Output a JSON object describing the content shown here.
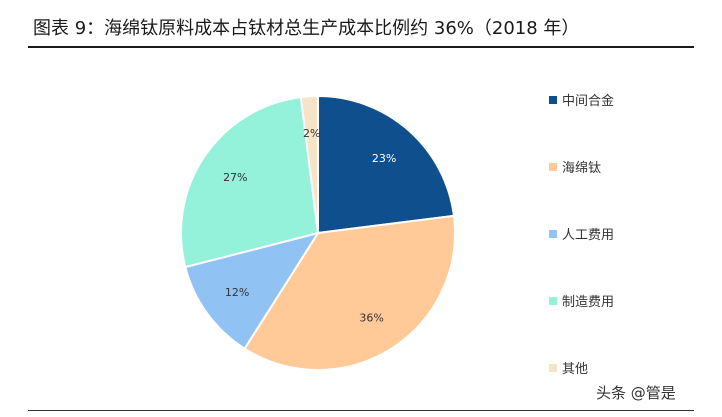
{
  "title": "图表 9：海绵钛原料成本占钛材总生产成本比例约 36%（2018 年）",
  "watermark": {
    "handle": "头条 @管是"
  },
  "chart_data": {
    "type": "pie",
    "title": "图表 9：海绵钛原料成本占钛材总生产成本比例约 36%（2018 年）",
    "start_angle_deg": 0,
    "direction": "clockwise",
    "legend_position": "right",
    "slices": [
      {
        "name": "中间合金",
        "value": 23,
        "label": "23%",
        "color": "#0F4F8E",
        "label_color": "#ffffff"
      },
      {
        "name": "海绵钛",
        "value": 36,
        "label": "36%",
        "color": "#FFC998",
        "label_color": "#333333"
      },
      {
        "name": "人工费用",
        "value": 12,
        "label": "12%",
        "color": "#90C3F4",
        "label_color": "#333333"
      },
      {
        "name": "制造费用",
        "value": 27,
        "label": "27%",
        "color": "#93F2D9",
        "label_color": "#333333"
      },
      {
        "name": "其他",
        "value": 2,
        "label": "2%",
        "color": "#F7E3C5",
        "label_color": "#333333"
      }
    ]
  }
}
